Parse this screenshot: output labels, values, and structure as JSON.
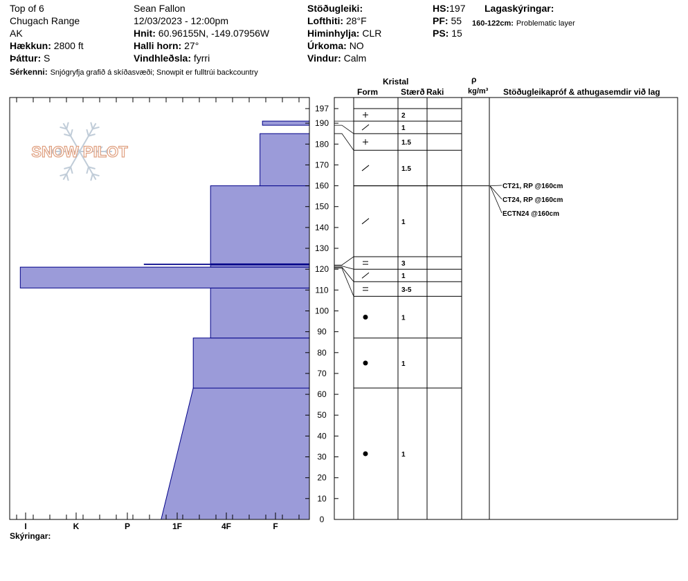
{
  "header": {
    "location": "Top of 6",
    "range": "Chugach Range",
    "state": "AK",
    "elevation_label": "Hækkun:",
    "elevation_value": "2800 ft",
    "aspect_label": "Þáttur:",
    "aspect_value": "S",
    "features_label": "Sérkenni:",
    "features_value": "Snjógryfja grafið á skíðasvæði;  Snowpit er fulltrúi backcountry",
    "observer": "Sean Fallon",
    "datetime": "12/03/2023 - 12:00pm",
    "coords_label": "Hnit:",
    "coords_value": "60.96155N, -149.07956W",
    "slope_label": "Halli horn:",
    "slope_value": "27°",
    "wind_load_label": "Vindhleðsla:",
    "wind_load_value": "fyrri",
    "stability_label": "Stöðugleiki:",
    "air_temp_label": "Lofthiti:",
    "air_temp_value": "28°F",
    "sky_label": "Himinhylja:",
    "sky_value": "CLR",
    "precip_label": "Úrkoma:",
    "precip_value": "NO",
    "wind_label": "Vindur:",
    "wind_value": "Calm",
    "hs_label": "HS:",
    "hs_value": "197",
    "pf_label": "PF:",
    "pf_value": "55",
    "ps_label": "PS:",
    "ps_value": "15",
    "layer_notes_label": "Lagaskýringar:",
    "layer_notes_range": "160-122cm:",
    "layer_notes_text": "Problematic layer"
  },
  "columns": {
    "crystal": "Kristal",
    "form": "Form",
    "size": "Stærð",
    "moisture": "Raki",
    "rho": "ρ",
    "density_unit": "kg/m³",
    "tests": "Stöðugleikapróf & athugasemdir við lag"
  },
  "footer": {
    "notes_label": "Skýringar:"
  },
  "logo": {
    "text": "SNOW PILOT"
  },
  "colors": {
    "hardness_fill": "#9b9bd9",
    "hardness_stroke": "#000088",
    "line": "#000000"
  },
  "chart_data": {
    "type": "bar",
    "title": "",
    "xlabel": "",
    "ylabel": "",
    "ylim": [
      0,
      197
    ],
    "y_ticks": [
      0,
      10,
      20,
      30,
      40,
      50,
      60,
      70,
      80,
      90,
      100,
      110,
      120,
      130,
      140,
      150,
      160,
      170,
      180,
      190,
      197
    ],
    "hardness_scale": [
      "I",
      "K",
      "P",
      "1F",
      "4F",
      "F"
    ],
    "hardness_profile": [
      {
        "bottom": 0,
        "top": 63,
        "hardness_bottom": 3.0,
        "hardness_top": 2.35
      },
      {
        "bottom": 63,
        "top": 87,
        "hardness": 2.35
      },
      {
        "bottom": 87,
        "top": 111,
        "hardness": 2.0
      },
      {
        "bottom": 111,
        "top": 121,
        "hardness": 5.85
      },
      {
        "bottom": 121,
        "top": 122,
        "hardness": 2.0
      },
      {
        "bottom": 122,
        "top": 122.6,
        "hardness": 3.35,
        "thin_line": true
      },
      {
        "bottom": 122.6,
        "top": 160,
        "hardness": 2.0
      },
      {
        "bottom": 160,
        "top": 185,
        "hardness": 1.0
      },
      {
        "bottom": 185,
        "top": 189,
        "hardness": 0.0
      },
      {
        "bottom": 189,
        "top": 191,
        "hardness": 0.95
      },
      {
        "bottom": 191,
        "top": 197,
        "hardness": 0.0
      }
    ],
    "layers": [
      {
        "top": 197,
        "bottom": 191,
        "form": "plus",
        "size": "2"
      },
      {
        "top": 191,
        "bottom": 185,
        "form": "slash",
        "size": "1"
      },
      {
        "top": 185,
        "bottom": 177,
        "form": "plus",
        "size": "1.5"
      },
      {
        "top": 177,
        "bottom": 160,
        "form": "slash",
        "size": "1.5"
      },
      {
        "top": 160,
        "bottom": 126,
        "form": "slash",
        "size": "1"
      },
      {
        "top": 126,
        "bottom": 120,
        "form": "equals",
        "size": "3"
      },
      {
        "top": 120,
        "bottom": 114,
        "form": "slash",
        "size": "1"
      },
      {
        "top": 114,
        "bottom": 107,
        "form": "equals",
        "size": "3-5"
      },
      {
        "top": 107,
        "bottom": 87,
        "form": "dot",
        "size": "1"
      },
      {
        "top": 87,
        "bottom": 63,
        "form": "dot",
        "size": "1"
      },
      {
        "top": 63,
        "bottom": 0,
        "form": "dot",
        "size": "1"
      }
    ],
    "tests": [
      {
        "label": "CT21, RP @160cm",
        "depth": 160
      },
      {
        "label": "CT24, RP @160cm",
        "depth": 160
      },
      {
        "label": "ECTN24 @160cm",
        "depth": 160
      }
    ]
  }
}
